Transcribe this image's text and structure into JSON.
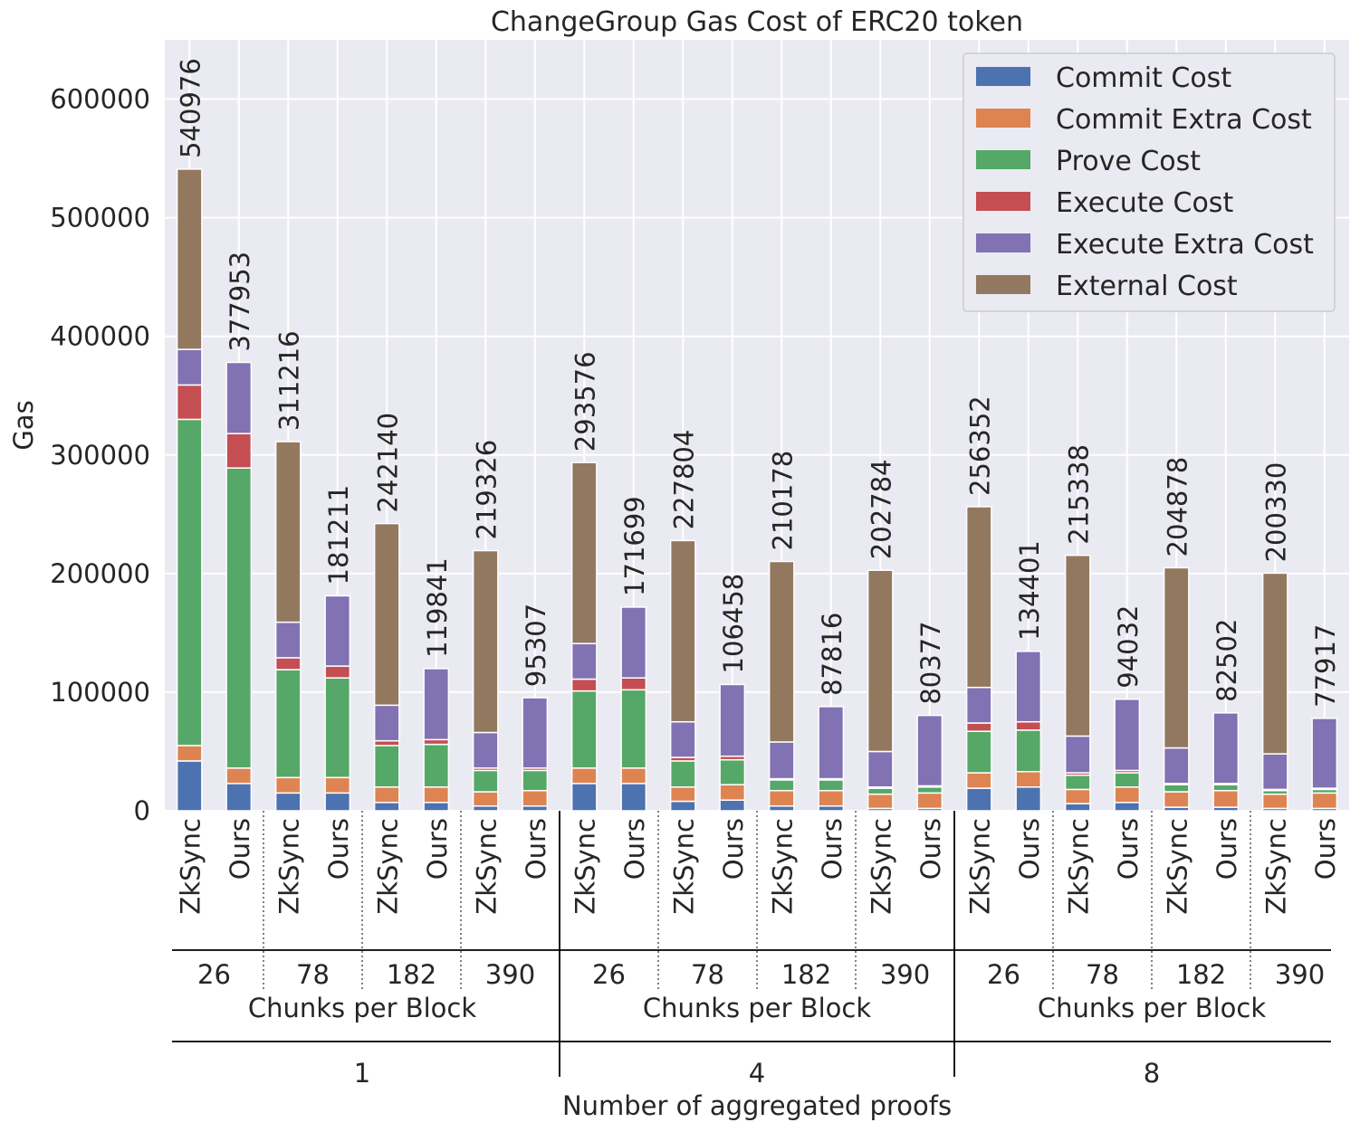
{
  "chart_data": {
    "type": "bar",
    "stacked": true,
    "title": "ChangeGroup Gas Cost of ERC20 token",
    "ylabel": "Gas",
    "xlabel": "Number of aggregated proofs",
    "ylim": [
      0,
      650000
    ],
    "yticks": [
      0,
      100000,
      200000,
      300000,
      400000,
      500000,
      600000
    ],
    "grid": true,
    "legend_position": "top-right",
    "series_names": [
      "Commit Cost",
      "Commit Extra Cost",
      "Prove Cost",
      "Execute Cost",
      "Execute Extra Cost",
      "External Cost"
    ],
    "colors": [
      "#4c72b0",
      "#dd8452",
      "#55a868",
      "#c44e52",
      "#8172b3",
      "#937860"
    ],
    "groups": [
      {
        "proofs": "1",
        "chunks_label": "Chunks per Block",
        "chunks": [
          {
            "chunk": "26",
            "bars": [
              {
                "label": "ZkSync",
                "total": "540976",
                "values": [
                  42000,
                  13000,
                  275000,
                  29000,
                  30000,
                  151976
                ]
              },
              {
                "label": "Ours",
                "total": "377953",
                "values": [
                  23000,
                  13000,
                  253000,
                  29000,
                  60000,
                  -53
                ]
              }
            ]
          },
          {
            "chunk": "78",
            "bars": [
              {
                "label": "ZkSync",
                "total": "311216",
                "values": [
                  15000,
                  13000,
                  91000,
                  10000,
                  30000,
                  152216
                ]
              },
              {
                "label": "Ours",
                "total": "181211",
                "values": [
                  15000,
                  13000,
                  84000,
                  10000,
                  59211,
                  0
                ]
              }
            ]
          },
          {
            "chunk": "182",
            "bars": [
              {
                "label": "ZkSync",
                "total": "242140",
                "values": [
                  7000,
                  13000,
                  35000,
                  4000,
                  30000,
                  153140
                ]
              },
              {
                "label": "Ours",
                "total": "119841",
                "values": [
                  7000,
                  13000,
                  36000,
                  4000,
                  59841,
                  0
                ]
              }
            ]
          },
          {
            "chunk": "390",
            "bars": [
              {
                "label": "ZkSync",
                "total": "219326",
                "values": [
                  4000,
                  12000,
                  18000,
                  2000,
                  30000,
                  153326
                ]
              },
              {
                "label": "Ours",
                "total": "95307",
                "values": [
                  4000,
                  13000,
                  17000,
                  2000,
                  59307,
                  0
                ]
              }
            ]
          }
        ]
      },
      {
        "proofs": "4",
        "chunks_label": "Chunks per Block",
        "chunks": [
          {
            "chunk": "26",
            "bars": [
              {
                "label": "ZkSync",
                "total": "293576",
                "values": [
                  23000,
                  13000,
                  65000,
                  10000,
                  30000,
                  152576
                ]
              },
              {
                "label": "Ours",
                "total": "171699",
                "values": [
                  23000,
                  13000,
                  66000,
                  10000,
                  59699,
                  0
                ]
              }
            ]
          },
          {
            "chunk": "78",
            "bars": [
              {
                "label": "ZkSync",
                "total": "227804",
                "values": [
                  8000,
                  12000,
                  22000,
                  3000,
                  30000,
                  152804
                ]
              },
              {
                "label": "Ours",
                "total": "106458",
                "values": [
                  9000,
                  13000,
                  21000,
                  3000,
                  60458,
                  0
                ]
              }
            ]
          },
          {
            "chunk": "182",
            "bars": [
              {
                "label": "ZkSync",
                "total": "210178",
                "values": [
                  4000,
                  13000,
                  9000,
                  1000,
                  31000,
                  152178
                ]
              },
              {
                "label": "Ours",
                "total": "87816",
                "values": [
                  4000,
                  13000,
                  9000,
                  1000,
                  60816,
                  0
                ]
              }
            ]
          },
          {
            "chunk": "390",
            "bars": [
              {
                "label": "ZkSync",
                "total": "202784",
                "values": [
                  2000,
                  12000,
                  5000,
                  1000,
                  30000,
                  152784
                ]
              },
              {
                "label": "Ours",
                "total": "80377",
                "values": [
                  2000,
                  13000,
                  5000,
                  1000,
                  59377,
                  0
                ]
              }
            ]
          }
        ]
      },
      {
        "proofs": "8",
        "chunks_label": "Chunks per Block",
        "chunks": [
          {
            "chunk": "26",
            "bars": [
              {
                "label": "ZkSync",
                "total": "256352",
                "values": [
                  19000,
                  13000,
                  35000,
                  7000,
                  30000,
                  152352
                ]
              },
              {
                "label": "Ours",
                "total": "134401",
                "values": [
                  20000,
                  13000,
                  35000,
                  7000,
                  59401,
                  0
                ]
              }
            ]
          },
          {
            "chunk": "78",
            "bars": [
              {
                "label": "ZkSync",
                "total": "215338",
                "values": [
                  6000,
                  12000,
                  12000,
                  2000,
                  31000,
                  152338
                ]
              },
              {
                "label": "Ours",
                "total": "94032",
                "values": [
                  7000,
                  13000,
                  12000,
                  2000,
                  60032,
                  0
                ]
              }
            ]
          },
          {
            "chunk": "182",
            "bars": [
              {
                "label": "ZkSync",
                "total": "204878",
                "values": [
                  3000,
                  13000,
                  6000,
                  1000,
                  30000,
                  151878
                ]
              },
              {
                "label": "Ours",
                "total": "82502",
                "values": [
                  3000,
                  14000,
                  5000,
                  1000,
                  59502,
                  0
                ]
              }
            ]
          },
          {
            "chunk": "390",
            "bars": [
              {
                "label": "ZkSync",
                "total": "200330",
                "values": [
                  2000,
                  12000,
                  3000,
                  1000,
                  30000,
                  152330
                ]
              },
              {
                "label": "Ours",
                "total": "77917",
                "values": [
                  2000,
                  13000,
                  3000,
                  1000,
                  58917,
                  0
                ]
              }
            ]
          }
        ]
      }
    ]
  }
}
